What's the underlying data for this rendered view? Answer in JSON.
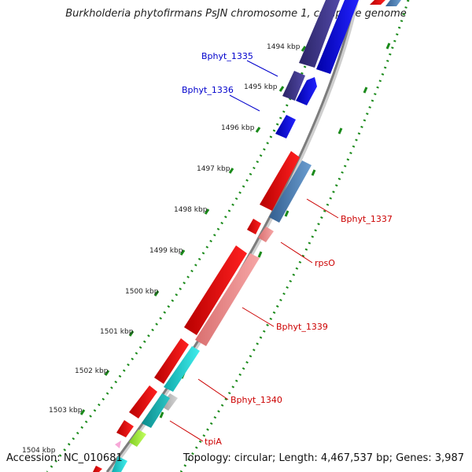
{
  "title": "Burkholderia phytofirmans PsJN chromosome 1, complete genome",
  "accession": "Accession: NC_010681",
  "summary": "Topology: circular; Length: 4,467,537 bp; Genes: 3,987",
  "ruler_labels": [
    "1494 kbp",
    "1495 kbp",
    "1496 kbp",
    "1497 kbp",
    "1498 kbp",
    "1499 kbp",
    "1500 kbp",
    "1501 kbp",
    "1502 kbp",
    "1503 kbp",
    "1504 kbp"
  ],
  "gene_labels": [
    {
      "id": "bphyt1335",
      "text": "Bphyt_1335",
      "color": "#0000cc"
    },
    {
      "id": "bphyt1336",
      "text": "Bphyt_1336",
      "color": "#0000cc"
    },
    {
      "id": "bphyt1337",
      "text": "Bphyt_1337",
      "color": "#cc0000"
    },
    {
      "id": "rpso",
      "text": "rpsO",
      "color": "#cc0000"
    },
    {
      "id": "bphyt1339",
      "text": "Bphyt_1339",
      "color": "#cc0000"
    },
    {
      "id": "bphyt1340",
      "text": "Bphyt_1340",
      "color": "#cc0000"
    },
    {
      "id": "tpia",
      "text": "tpiA",
      "color": "#cc0000"
    }
  ],
  "colors": {
    "red": "#f00000",
    "pink": "#ef8f8f",
    "steel_blue": "#4a7fb8",
    "blue": "#0000ee",
    "indigo": "#3b3485",
    "cyan": "#22d4d4",
    "teal": "#1ab3b3",
    "lime": "#a6f23c",
    "light_pink": "#f7a8d8",
    "ruler_tick": "#1a8a1a",
    "backbone": "#8c8c8c"
  }
}
